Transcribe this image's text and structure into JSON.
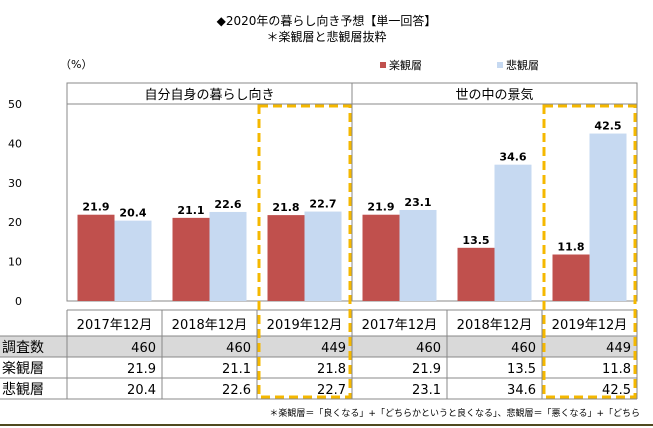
{
  "title": "◆2020年の暮らし向き予想【単一回答】",
  "subtitle": "＊楽観層と悲観層抜粋",
  "unit": "（%）",
  "footnote": "＊楽観層＝「良くなる」+「どちらかというと良くなる」、悲観層＝「悪くなる」+「どちら",
  "colors": {
    "optimistic": "#c0504d",
    "pessimistic": "#c6d9f1",
    "highlight": "#f5b800"
  },
  "chart_data": {
    "type": "bar",
    "title": "◆2020年の暮らし向き予想【単一回答】",
    "ylabel": "（%）",
    "ylim": [
      0,
      50
    ],
    "yticks": [
      0,
      10,
      20,
      30,
      40,
      50
    ],
    "legend": [
      "楽観層",
      "悲観層"
    ],
    "legend_position": "top-right",
    "panels": [
      "自分自身の暮らし向き",
      "世の中の景気"
    ],
    "categories": [
      "2017年12月",
      "2018年12月",
      "2019年12月",
      "2017年12月",
      "2018年12月",
      "2019年12月"
    ],
    "series": [
      {
        "name": "楽観層",
        "values": [
          21.9,
          21.1,
          21.8,
          21.9,
          13.5,
          11.8
        ]
      },
      {
        "name": "悲観層",
        "values": [
          20.4,
          22.6,
          22.7,
          23.1,
          34.6,
          42.5
        ]
      }
    ],
    "highlighted_categories": [
      2,
      5
    ]
  },
  "table": {
    "rows": [
      {
        "label": "調査数",
        "values": [
          "460",
          "460",
          "449",
          "460",
          "460",
          "449"
        ]
      },
      {
        "label": "楽観層",
        "values": [
          "21.9",
          "21.1",
          "21.8",
          "21.9",
          "13.5",
          "11.8"
        ]
      },
      {
        "label": "悲観層",
        "values": [
          "20.4",
          "22.6",
          "22.7",
          "23.1",
          "34.6",
          "42.5"
        ]
      }
    ]
  }
}
